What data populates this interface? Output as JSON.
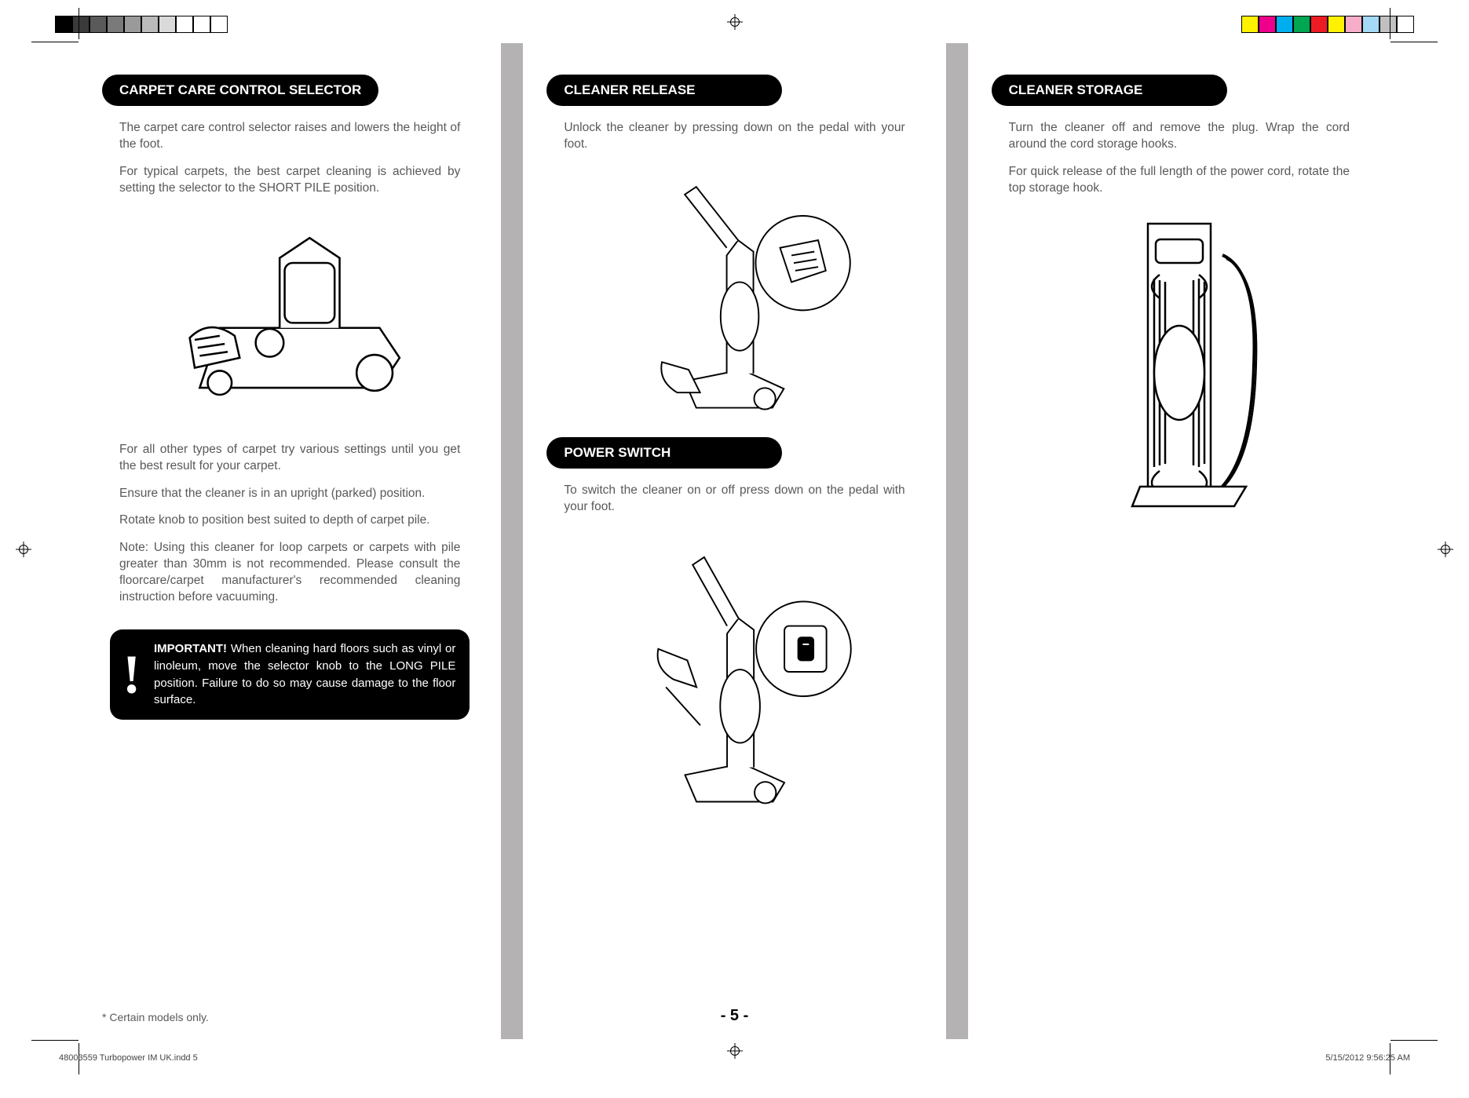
{
  "print": {
    "left_swatches": [
      "#000000",
      "#3a3a3a",
      "#5a5a5a",
      "#7a7a7a",
      "#9a9a9a",
      "#bababa",
      "#dadada",
      "#ffffff",
      "#ffffff",
      "#ffffff"
    ],
    "right_swatches": [
      "#fff200",
      "#ec008c",
      "#00aeef",
      "#00a651",
      "#ed1c24",
      "#fff200",
      "#f7adc8",
      "#a3d9f5",
      "#c0c0c0",
      "#ffffff"
    ]
  },
  "columns": {
    "col1": {
      "header": "CARPET CARE CONTROL SELECTOR",
      "p1": "The carpet care control selector raises and lowers the height of the foot.",
      "p2": "For typical carpets, the best carpet cleaning is achieved by setting the selector to the SHORT PILE position.",
      "p3": "For all other types of carpet try various settings until you get the best result for your carpet.",
      "p4": "Ensure that the cleaner is in an upright (parked) position.",
      "p5": "Rotate knob to position best suited to depth of carpet pile.",
      "p6": "Note: Using this cleaner for loop carpets or carpets with pile greater than 30mm is not recommended. Please consult the floorcare/carpet manufacturer's recommended cleaning instruction before vacuuming.",
      "important_label": "IMPORTANT!",
      "important_body": "When cleaning hard floors such as vinyl or linoleum, move the selector knob to the LONG PILE position. Failure to do so may cause damage to the floor surface."
    },
    "col2": {
      "header1": "CLEANER RELEASE",
      "p1": "Unlock the cleaner by pressing down on the pedal with your foot.",
      "header2": "POWER SWITCH",
      "p2": "To switch the cleaner on or off press down on the pedal with your foot."
    },
    "col3": {
      "header": "CLEANER STORAGE",
      "p1": "Turn the cleaner off and remove the plug. Wrap the cord around the cord storage hooks.",
      "p2": "For quick release of the full length of the power cord, rotate the top storage hook."
    }
  },
  "footer": {
    "footnote": "* Certain models only.",
    "page": "- 5 -",
    "slug_left": "48003559 Turbopower IM UK.indd   5",
    "slug_right": "5/15/2012   9:56:25 AM"
  },
  "style": {
    "header_bg": "#000000",
    "header_fg": "#ffffff",
    "body_color": "#58595b",
    "gutter_color": "#b4b2b3",
    "body_fontsize": 15.5,
    "header_fontsize": 17
  }
}
